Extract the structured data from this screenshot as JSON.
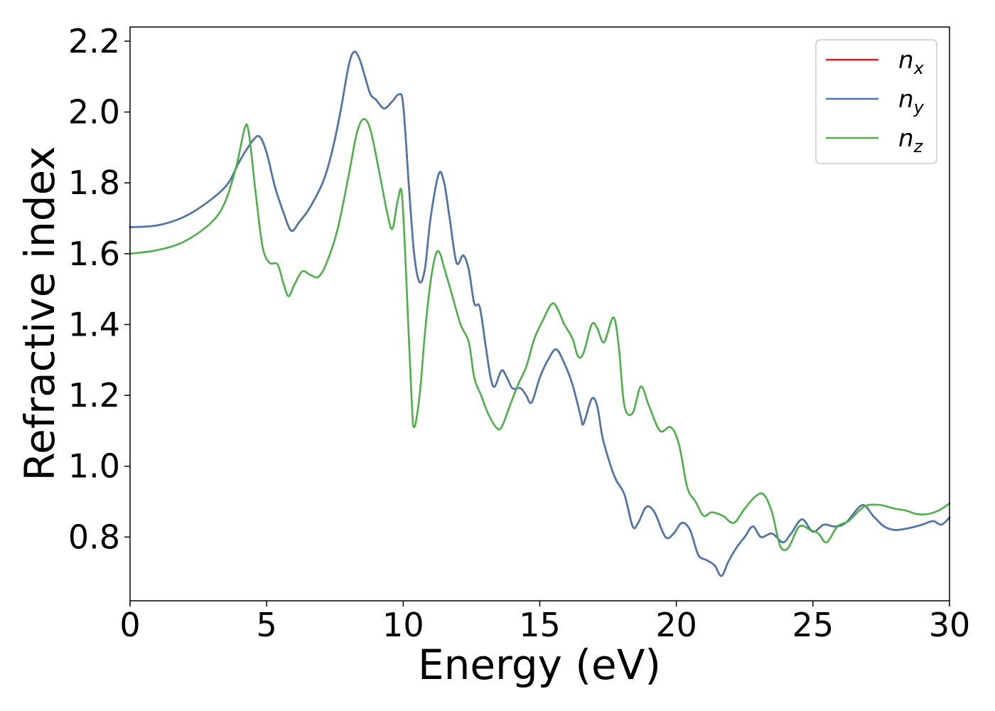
{
  "chart_data": {
    "type": "line",
    "title": "",
    "xlabel": "Energy (eV)",
    "ylabel": "Refractive index",
    "xlim": [
      0,
      30
    ],
    "ylim": [
      0.62,
      2.24
    ],
    "x_ticks": [
      "0",
      "5",
      "10",
      "15",
      "20",
      "25",
      "30"
    ],
    "y_ticks": [
      "0.8",
      "1.0",
      "1.2",
      "1.4",
      "1.6",
      "1.8",
      "2.0",
      "2.2"
    ],
    "grid": false,
    "legend_position": "top-right",
    "series": [
      {
        "name": "nx",
        "legend_base": "n",
        "legend_sub": "x",
        "color": "#e41a1c",
        "points": [
          [
            0,
            1.675
          ],
          [
            1,
            1.68
          ],
          [
            2,
            1.705
          ],
          [
            3,
            1.755
          ],
          [
            3.6,
            1.8
          ],
          [
            4,
            1.86
          ],
          [
            4.5,
            1.92
          ],
          [
            4.75,
            1.93
          ],
          [
            5,
            1.885
          ],
          [
            5.3,
            1.79
          ],
          [
            5.6,
            1.72
          ],
          [
            5.9,
            1.665
          ],
          [
            6.2,
            1.69
          ],
          [
            6.5,
            1.72
          ],
          [
            6.8,
            1.76
          ],
          [
            7.1,
            1.81
          ],
          [
            7.4,
            1.89
          ],
          [
            7.7,
            2.0
          ],
          [
            8.0,
            2.13
          ],
          [
            8.2,
            2.17
          ],
          [
            8.4,
            2.15
          ],
          [
            8.6,
            2.1
          ],
          [
            8.8,
            2.05
          ],
          [
            9.0,
            2.035
          ],
          [
            9.3,
            2.01
          ],
          [
            9.6,
            2.03
          ],
          [
            9.85,
            2.05
          ],
          [
            10.0,
            2.02
          ],
          [
            10.2,
            1.8
          ],
          [
            10.4,
            1.6
          ],
          [
            10.6,
            1.52
          ],
          [
            10.8,
            1.56
          ],
          [
            11.0,
            1.7
          ],
          [
            11.3,
            1.825
          ],
          [
            11.5,
            1.8
          ],
          [
            11.7,
            1.7
          ],
          [
            11.95,
            1.575
          ],
          [
            12.2,
            1.595
          ],
          [
            12.4,
            1.555
          ],
          [
            12.6,
            1.46
          ],
          [
            12.8,
            1.45
          ],
          [
            13.0,
            1.35
          ],
          [
            13.2,
            1.25
          ],
          [
            13.35,
            1.225
          ],
          [
            13.6,
            1.27
          ],
          [
            13.8,
            1.25
          ],
          [
            14.0,
            1.22
          ],
          [
            14.3,
            1.22
          ],
          [
            14.5,
            1.2
          ],
          [
            14.7,
            1.18
          ],
          [
            15.0,
            1.25
          ],
          [
            15.3,
            1.3
          ],
          [
            15.6,
            1.33
          ],
          [
            15.9,
            1.29
          ],
          [
            16.2,
            1.23
          ],
          [
            16.5,
            1.14
          ],
          [
            16.6,
            1.12
          ],
          [
            16.9,
            1.19
          ],
          [
            17.1,
            1.17
          ],
          [
            17.3,
            1.08
          ],
          [
            17.6,
            1.0
          ],
          [
            17.8,
            0.96
          ],
          [
            18.1,
            0.92
          ],
          [
            18.4,
            0.83
          ],
          [
            18.6,
            0.84
          ],
          [
            18.9,
            0.885
          ],
          [
            19.2,
            0.87
          ],
          [
            19.6,
            0.8
          ],
          [
            19.9,
            0.81
          ],
          [
            20.2,
            0.84
          ],
          [
            20.5,
            0.82
          ],
          [
            20.8,
            0.75
          ],
          [
            21.1,
            0.735
          ],
          [
            21.4,
            0.72
          ],
          [
            21.65,
            0.69
          ],
          [
            21.9,
            0.73
          ],
          [
            22.2,
            0.77
          ],
          [
            22.5,
            0.8
          ],
          [
            22.8,
            0.83
          ],
          [
            23.1,
            0.8
          ],
          [
            23.5,
            0.81
          ],
          [
            23.9,
            0.785
          ],
          [
            24.2,
            0.81
          ],
          [
            24.6,
            0.85
          ],
          [
            25.0,
            0.815
          ],
          [
            25.4,
            0.835
          ],
          [
            25.8,
            0.83
          ],
          [
            26.2,
            0.84
          ],
          [
            26.8,
            0.89
          ],
          [
            27.2,
            0.86
          ],
          [
            27.6,
            0.83
          ],
          [
            28.0,
            0.82
          ],
          [
            28.5,
            0.825
          ],
          [
            29.0,
            0.835
          ],
          [
            29.4,
            0.845
          ],
          [
            29.7,
            0.835
          ],
          [
            30.0,
            0.855
          ]
        ]
      },
      {
        "name": "ny",
        "legend_base": "n",
        "legend_sub": "y",
        "color": "#4a78b0",
        "points": [
          [
            0,
            1.675
          ],
          [
            1,
            1.68
          ],
          [
            2,
            1.705
          ],
          [
            3,
            1.755
          ],
          [
            3.6,
            1.8
          ],
          [
            4,
            1.86
          ],
          [
            4.5,
            1.92
          ],
          [
            4.75,
            1.93
          ],
          [
            5,
            1.885
          ],
          [
            5.3,
            1.79
          ],
          [
            5.6,
            1.72
          ],
          [
            5.9,
            1.665
          ],
          [
            6.2,
            1.69
          ],
          [
            6.5,
            1.72
          ],
          [
            6.8,
            1.76
          ],
          [
            7.1,
            1.81
          ],
          [
            7.4,
            1.89
          ],
          [
            7.7,
            2.0
          ],
          [
            8.0,
            2.13
          ],
          [
            8.2,
            2.17
          ],
          [
            8.4,
            2.15
          ],
          [
            8.6,
            2.1
          ],
          [
            8.8,
            2.05
          ],
          [
            9.0,
            2.035
          ],
          [
            9.3,
            2.01
          ],
          [
            9.6,
            2.03
          ],
          [
            9.85,
            2.05
          ],
          [
            10.0,
            2.02
          ],
          [
            10.2,
            1.8
          ],
          [
            10.4,
            1.6
          ],
          [
            10.6,
            1.52
          ],
          [
            10.8,
            1.56
          ],
          [
            11.0,
            1.7
          ],
          [
            11.3,
            1.825
          ],
          [
            11.5,
            1.8
          ],
          [
            11.7,
            1.7
          ],
          [
            11.95,
            1.575
          ],
          [
            12.2,
            1.595
          ],
          [
            12.4,
            1.555
          ],
          [
            12.6,
            1.46
          ],
          [
            12.8,
            1.45
          ],
          [
            13.0,
            1.35
          ],
          [
            13.2,
            1.25
          ],
          [
            13.35,
            1.225
          ],
          [
            13.6,
            1.27
          ],
          [
            13.8,
            1.25
          ],
          [
            14.0,
            1.22
          ],
          [
            14.3,
            1.22
          ],
          [
            14.5,
            1.2
          ],
          [
            14.7,
            1.18
          ],
          [
            15.0,
            1.25
          ],
          [
            15.3,
            1.3
          ],
          [
            15.6,
            1.33
          ],
          [
            15.9,
            1.29
          ],
          [
            16.2,
            1.23
          ],
          [
            16.5,
            1.14
          ],
          [
            16.6,
            1.12
          ],
          [
            16.9,
            1.19
          ],
          [
            17.1,
            1.17
          ],
          [
            17.3,
            1.08
          ],
          [
            17.6,
            1.0
          ],
          [
            17.8,
            0.96
          ],
          [
            18.1,
            0.92
          ],
          [
            18.4,
            0.83
          ],
          [
            18.6,
            0.84
          ],
          [
            18.9,
            0.885
          ],
          [
            19.2,
            0.87
          ],
          [
            19.6,
            0.8
          ],
          [
            19.9,
            0.81
          ],
          [
            20.2,
            0.84
          ],
          [
            20.5,
            0.82
          ],
          [
            20.8,
            0.75
          ],
          [
            21.1,
            0.735
          ],
          [
            21.4,
            0.72
          ],
          [
            21.65,
            0.69
          ],
          [
            21.9,
            0.73
          ],
          [
            22.2,
            0.77
          ],
          [
            22.5,
            0.8
          ],
          [
            22.8,
            0.83
          ],
          [
            23.1,
            0.8
          ],
          [
            23.5,
            0.81
          ],
          [
            23.9,
            0.785
          ],
          [
            24.2,
            0.81
          ],
          [
            24.6,
            0.85
          ],
          [
            25.0,
            0.815
          ],
          [
            25.4,
            0.835
          ],
          [
            25.8,
            0.83
          ],
          [
            26.2,
            0.84
          ],
          [
            26.8,
            0.89
          ],
          [
            27.2,
            0.86
          ],
          [
            27.6,
            0.83
          ],
          [
            28.0,
            0.82
          ],
          [
            28.5,
            0.825
          ],
          [
            29.0,
            0.835
          ],
          [
            29.4,
            0.845
          ],
          [
            29.7,
            0.835
          ],
          [
            30.0,
            0.855
          ]
        ]
      },
      {
        "name": "nz",
        "legend_base": "n",
        "legend_sub": "z",
        "color": "#4daf4a",
        "points": [
          [
            0,
            1.6
          ],
          [
            1,
            1.61
          ],
          [
            2,
            1.635
          ],
          [
            3,
            1.69
          ],
          [
            3.5,
            1.75
          ],
          [
            3.9,
            1.85
          ],
          [
            4.2,
            1.955
          ],
          [
            4.35,
            1.94
          ],
          [
            4.6,
            1.77
          ],
          [
            4.85,
            1.62
          ],
          [
            5.1,
            1.575
          ],
          [
            5.4,
            1.57
          ],
          [
            5.6,
            1.52
          ],
          [
            5.8,
            1.48
          ],
          [
            6.0,
            1.51
          ],
          [
            6.3,
            1.55
          ],
          [
            6.6,
            1.54
          ],
          [
            6.9,
            1.535
          ],
          [
            7.2,
            1.575
          ],
          [
            7.6,
            1.67
          ],
          [
            8.0,
            1.82
          ],
          [
            8.3,
            1.94
          ],
          [
            8.55,
            1.98
          ],
          [
            8.8,
            1.95
          ],
          [
            9.1,
            1.84
          ],
          [
            9.4,
            1.72
          ],
          [
            9.6,
            1.67
          ],
          [
            9.8,
            1.75
          ],
          [
            9.95,
            1.77
          ],
          [
            10.1,
            1.55
          ],
          [
            10.3,
            1.2
          ],
          [
            10.4,
            1.11
          ],
          [
            10.6,
            1.2
          ],
          [
            10.8,
            1.38
          ],
          [
            11.0,
            1.52
          ],
          [
            11.2,
            1.6
          ],
          [
            11.35,
            1.6
          ],
          [
            11.5,
            1.56
          ],
          [
            11.8,
            1.48
          ],
          [
            12.1,
            1.4
          ],
          [
            12.4,
            1.35
          ],
          [
            12.6,
            1.25
          ],
          [
            12.85,
            1.2
          ],
          [
            13.1,
            1.15
          ],
          [
            13.4,
            1.11
          ],
          [
            13.6,
            1.11
          ],
          [
            13.9,
            1.17
          ],
          [
            14.2,
            1.23
          ],
          [
            14.5,
            1.28
          ],
          [
            14.8,
            1.36
          ],
          [
            15.1,
            1.41
          ],
          [
            15.5,
            1.46
          ],
          [
            15.9,
            1.4
          ],
          [
            16.2,
            1.36
          ],
          [
            16.4,
            1.31
          ],
          [
            16.6,
            1.32
          ],
          [
            16.9,
            1.4
          ],
          [
            17.1,
            1.39
          ],
          [
            17.35,
            1.35
          ],
          [
            17.7,
            1.42
          ],
          [
            17.9,
            1.33
          ],
          [
            18.1,
            1.17
          ],
          [
            18.4,
            1.15
          ],
          [
            18.7,
            1.225
          ],
          [
            19.0,
            1.17
          ],
          [
            19.4,
            1.1
          ],
          [
            19.8,
            1.11
          ],
          [
            20.1,
            1.06
          ],
          [
            20.4,
            0.94
          ],
          [
            20.7,
            0.9
          ],
          [
            21.0,
            0.86
          ],
          [
            21.3,
            0.87
          ],
          [
            21.7,
            0.86
          ],
          [
            22.1,
            0.84
          ],
          [
            22.5,
            0.88
          ],
          [
            22.9,
            0.915
          ],
          [
            23.2,
            0.92
          ],
          [
            23.5,
            0.87
          ],
          [
            23.8,
            0.775
          ],
          [
            24.1,
            0.77
          ],
          [
            24.5,
            0.83
          ],
          [
            24.9,
            0.82
          ],
          [
            25.2,
            0.81
          ],
          [
            25.5,
            0.785
          ],
          [
            25.9,
            0.83
          ],
          [
            26.3,
            0.845
          ],
          [
            26.7,
            0.875
          ],
          [
            27.0,
            0.89
          ],
          [
            27.5,
            0.89
          ],
          [
            28.0,
            0.88
          ],
          [
            28.4,
            0.875
          ],
          [
            28.8,
            0.865
          ],
          [
            29.2,
            0.865
          ],
          [
            29.6,
            0.875
          ],
          [
            30.0,
            0.895
          ]
        ]
      }
    ]
  }
}
